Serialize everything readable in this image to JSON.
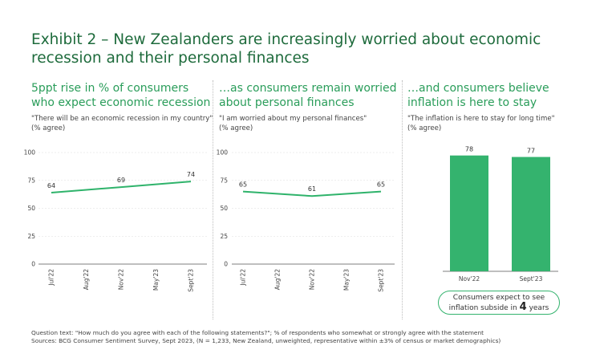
{
  "title": "Exhibit 2 – New Zealanders are increasingly worried about economic recession and their personal finances",
  "panels": [
    {
      "heading": "5ppt rise in % of consumers who expect economic recession",
      "question": "\"There will be an economic recession in my country\"",
      "unit": "(% agree)"
    },
    {
      "heading": "…as consumers remain worried about personal finances",
      "question": "\"I am worried about my personal finances\"",
      "unit": "(% agree)"
    },
    {
      "heading": "…and consumers believe inflation is here to stay",
      "question": "\"The inflation is here to stay for long time\"",
      "unit": "(% agree)"
    }
  ],
  "callout": {
    "text_before": "Consumers expect to see",
    "text_mid": "inflation subside in",
    "number": "4",
    "text_after": "years"
  },
  "footer": {
    "line1": "Question text: \"How much do you agree with each of the following statements?\"; % of respondents who somewhat or strongly agree with the statement",
    "line2": "Sources: BCG Consumer Sentiment Survey, Sept 2023, (N = 1,233, New Zealand, unweighted, representative within ±3% of census or market demographics)"
  },
  "colors": {
    "accent": "#34b36e",
    "title": "#1e6b3c",
    "line": "#2fb36b"
  },
  "chart_data": [
    {
      "type": "line",
      "x": [
        "Jul'22",
        "Aug'22",
        "Nov'22",
        "May'23",
        "Sept'23"
      ],
      "labeled_points": [
        {
          "x": "Jul'22",
          "y": 64
        },
        {
          "x": "Nov'22",
          "y": 69
        },
        {
          "x": "Sept'23",
          "y": 74
        }
      ],
      "ylim": [
        0,
        100
      ],
      "yticks": [
        0,
        25,
        50,
        75,
        100
      ],
      "grid": true
    },
    {
      "type": "line",
      "x": [
        "Jul'22",
        "Aug'22",
        "Nov'22",
        "May'23",
        "Sept'23"
      ],
      "labeled_points": [
        {
          "x": "Jul'22",
          "y": 65
        },
        {
          "x": "Nov'22",
          "y": 61
        },
        {
          "x": "Sept'23",
          "y": 65
        }
      ],
      "ylim": [
        0,
        100
      ],
      "yticks": [
        0,
        25,
        50,
        75,
        100
      ],
      "grid": true
    },
    {
      "type": "bar",
      "categories": [
        "Nov'22",
        "Sept'23"
      ],
      "values": [
        78,
        77
      ]
    }
  ]
}
